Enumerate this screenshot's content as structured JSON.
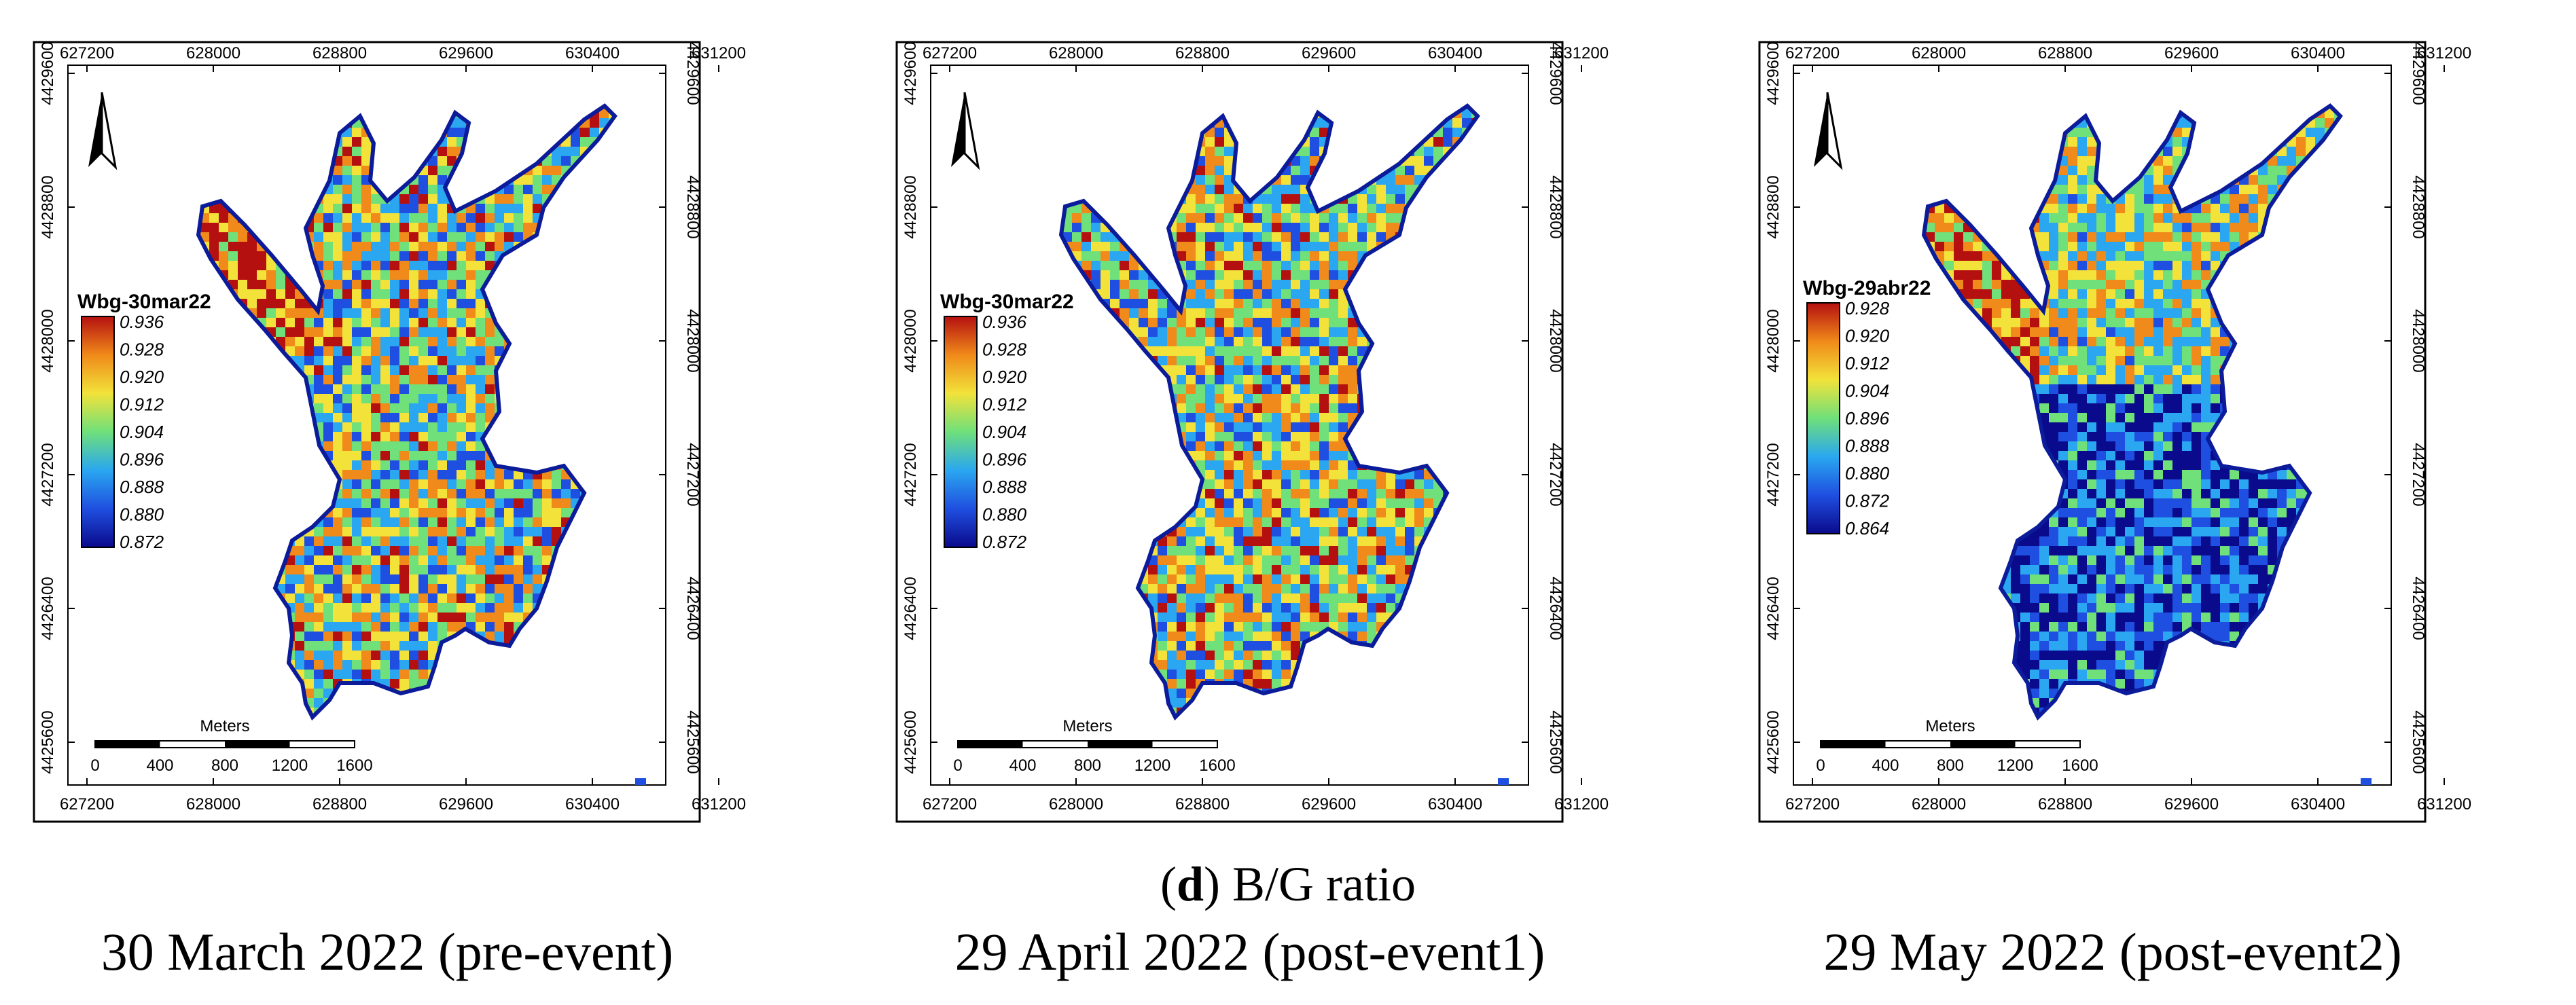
{
  "figure": {
    "caption_letter": "d",
    "caption_paren_open": "(",
    "caption_paren_close": ")",
    "caption_text": " B/G ratio"
  },
  "axes": {
    "x_ticks": [
      "627200",
      "628000",
      "628800",
      "629600",
      "630400",
      "631200"
    ],
    "y_ticks": [
      "4429600",
      "4428800",
      "4428000",
      "4427200",
      "4426400",
      "4425600"
    ]
  },
  "scalebar": {
    "title": "Meters",
    "labels": [
      "0",
      "400",
      "800",
      "1200",
      "1600"
    ]
  },
  "colors": {
    "ramp": [
      "#0a0a8c",
      "#1f4fe0",
      "#2aa7f0",
      "#6fe07a",
      "#f2e23a",
      "#f08a1a",
      "#b51010"
    ],
    "frame": "#000000"
  },
  "panels": [
    {
      "date_label": "30 March 2022 (pre-event)",
      "legend_title": "Wbg-30mar22",
      "legend_values": [
        "0.936",
        "0.928",
        "0.920",
        "0.912",
        "0.904",
        "0.896",
        "0.888",
        "0.880",
        "0.872"
      ],
      "tone": "mid"
    },
    {
      "date_label": "29 April 2022 (post-event1)",
      "legend_title": "Wbg-30mar22",
      "legend_values": [
        "0.936",
        "0.928",
        "0.920",
        "0.912",
        "0.904",
        "0.896",
        "0.888",
        "0.880",
        "0.872"
      ],
      "tone": "mid"
    },
    {
      "date_label": "29 May 2022 (post-event2)",
      "legend_title": "Wbg-29abr22",
      "legend_values": [
        "0.928",
        "0.920",
        "0.912",
        "0.904",
        "0.896",
        "0.888",
        "0.880",
        "0.872",
        "0.864"
      ],
      "tone": "split"
    }
  ]
}
